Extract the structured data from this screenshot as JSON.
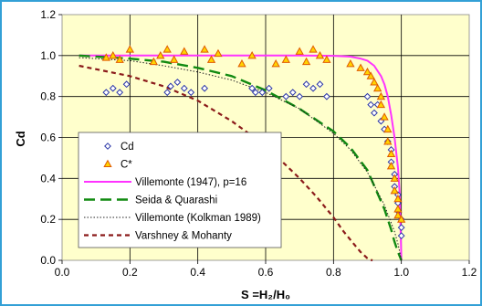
{
  "chart_data": {
    "type": "scatter",
    "title": "",
    "xlabel": "S =H₂/H₀",
    "ylabel": "Cd",
    "xlim": [
      0,
      1.2
    ],
    "ylim": [
      0,
      1.2
    ],
    "x_ticks": [
      "0.0",
      "0.2",
      "0.4",
      "0.6",
      "0.8",
      "1.0",
      "1.2"
    ],
    "y_ticks": [
      "0.0",
      "0.2",
      "0.4",
      "0.6",
      "0.8",
      "1.0",
      "1.2"
    ],
    "grid": true,
    "legend_position": "bottom-left",
    "colors": {
      "plot_background": "#ffffcc",
      "outer_background": "#ffffff",
      "border": "#33a0d6",
      "cd_marker": "#2a36a8",
      "cstar_marker_stroke": "#e05a00",
      "cstar_marker_fill": "#ffd300",
      "villemonte_1947": "#ff33ff",
      "seida": "#118a11",
      "villemonte_kolkman": "#222222",
      "varshney": "#8b1a1a"
    },
    "series": [
      {
        "name": "Cd",
        "kind": "scatter",
        "marker": "diamond",
        "x": [
          0.13,
          0.15,
          0.17,
          0.19,
          0.31,
          0.32,
          0.34,
          0.36,
          0.38,
          0.42,
          0.56,
          0.57,
          0.59,
          0.61,
          0.66,
          0.68,
          0.7,
          0.72,
          0.74,
          0.76,
          0.78,
          0.9,
          0.91,
          0.92,
          0.93,
          0.94,
          0.95,
          0.96,
          0.97,
          0.97,
          0.98,
          0.98,
          0.99,
          0.99,
          0.99,
          1.0,
          1.0,
          1.0
        ],
        "y": [
          0.82,
          0.84,
          0.82,
          0.86,
          0.82,
          0.85,
          0.87,
          0.84,
          0.82,
          0.84,
          0.84,
          0.82,
          0.82,
          0.84,
          0.8,
          0.82,
          0.8,
          0.86,
          0.84,
          0.86,
          0.8,
          0.8,
          0.76,
          0.72,
          0.76,
          0.68,
          0.64,
          0.58,
          0.54,
          0.48,
          0.42,
          0.36,
          0.32,
          0.28,
          0.24,
          0.2,
          0.16,
          0.12
        ]
      },
      {
        "name": "C*",
        "kind": "scatter",
        "marker": "triangle",
        "x": [
          0.13,
          0.15,
          0.17,
          0.2,
          0.27,
          0.29,
          0.31,
          0.33,
          0.36,
          0.42,
          0.44,
          0.46,
          0.53,
          0.56,
          0.63,
          0.66,
          0.7,
          0.72,
          0.74,
          0.76,
          0.78,
          0.85,
          0.88,
          0.9,
          0.91,
          0.92,
          0.93,
          0.94,
          0.94,
          0.95,
          0.96,
          0.96,
          0.97,
          0.97,
          0.98,
          0.98,
          0.99,
          0.99,
          0.99,
          1.0
        ],
        "y": [
          0.99,
          1.0,
          0.98,
          1.03,
          0.97,
          1.0,
          1.03,
          0.98,
          1.02,
          1.03,
          0.98,
          1.01,
          0.96,
          1.0,
          0.96,
          0.98,
          1.02,
          0.97,
          1.03,
          1.0,
          0.98,
          0.96,
          0.94,
          0.92,
          0.9,
          0.87,
          0.84,
          0.8,
          0.76,
          0.7,
          0.64,
          0.58,
          0.52,
          0.46,
          0.4,
          0.34,
          0.3,
          0.25,
          0.22,
          0.2
        ]
      },
      {
        "name": "Villemonte (1947), p=16",
        "kind": "line",
        "dash": "solid",
        "x": [
          0.05,
          0.2,
          0.4,
          0.6,
          0.7,
          0.8,
          0.85,
          0.88,
          0.9,
          0.92,
          0.94,
          0.95,
          0.96,
          0.97,
          0.98,
          0.99,
          0.995,
          1.0
        ],
        "y": [
          1.0,
          1.0,
          1.0,
          1.0,
          1.0,
          0.999,
          0.995,
          0.985,
          0.975,
          0.95,
          0.9,
          0.86,
          0.8,
          0.71,
          0.6,
          0.45,
          0.33,
          0.0
        ]
      },
      {
        "name": "Seida & Quarashi",
        "kind": "line",
        "dash": "long-dash",
        "x": [
          0.05,
          0.2,
          0.3,
          0.4,
          0.5,
          0.6,
          0.7,
          0.8,
          0.85,
          0.9,
          0.95,
          0.97,
          0.98,
          0.99,
          1.0
        ],
        "y": [
          1.0,
          0.985,
          0.97,
          0.94,
          0.9,
          0.83,
          0.74,
          0.63,
          0.55,
          0.44,
          0.25,
          0.15,
          0.09,
          0.04,
          0.0
        ]
      },
      {
        "name": "Villemonte (Kolkman 1989)",
        "kind": "line",
        "dash": "dotted",
        "x": [
          0.05,
          0.2,
          0.3,
          0.4,
          0.5,
          0.6,
          0.7,
          0.8,
          0.85,
          0.9,
          0.95,
          0.98,
          0.99,
          1.0
        ],
        "y": [
          0.99,
          0.975,
          0.95,
          0.92,
          0.88,
          0.82,
          0.74,
          0.62,
          0.54,
          0.43,
          0.27,
          0.14,
          0.08,
          0.0
        ]
      },
      {
        "name": "Varshney & Mohanty",
        "kind": "line",
        "dash": "short-dash",
        "x": [
          0.05,
          0.2,
          0.3,
          0.4,
          0.5,
          0.6,
          0.7,
          0.75,
          0.8,
          0.83,
          0.86,
          0.88,
          0.9,
          0.91,
          0.915
        ],
        "y": [
          0.95,
          0.9,
          0.85,
          0.78,
          0.68,
          0.56,
          0.4,
          0.31,
          0.21,
          0.14,
          0.08,
          0.04,
          0.01,
          0.002,
          0.0
        ]
      }
    ]
  }
}
